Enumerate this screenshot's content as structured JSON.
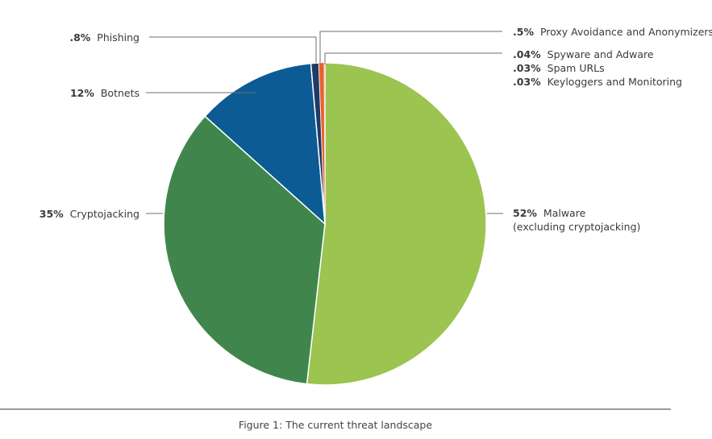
{
  "chart_data": {
    "type": "pie",
    "slices": [
      {
        "label": "Malware",
        "sublabel": "(excluding cryptojacking)",
        "value": 52,
        "display": "52%",
        "color": "#9bc450"
      },
      {
        "label": "Cryptojacking",
        "value": 35,
        "display": "35%",
        "color": "#40864c"
      },
      {
        "label": "Botnets",
        "value": 12,
        "display": "12%",
        "color": "#0c5b94"
      },
      {
        "label": "Phishing",
        "value": 0.8,
        "display": ".8%",
        "color": "#1f3a66"
      },
      {
        "label": "Proxy Avoidance and Anonymizers",
        "value": 0.5,
        "display": ".5%",
        "color": "#e8622e"
      },
      {
        "label": "Spyware and Adware",
        "value": 0.04,
        "display": ".04%",
        "color": "#e8622e"
      },
      {
        "label": "Spam URLs",
        "value": 0.03,
        "display": ".03%",
        "color": "#e8622e"
      },
      {
        "label": "Keyloggers and Monitoring",
        "value": 0.03,
        "display": ".03%",
        "color": "#e8622e"
      }
    ]
  },
  "caption": "Figure 1:  The current threat landscape"
}
